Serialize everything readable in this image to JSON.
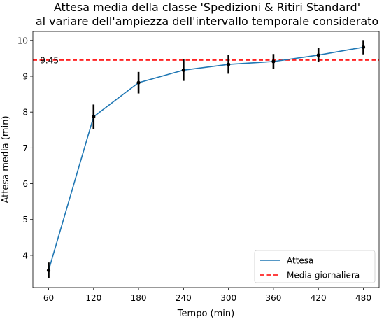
{
  "chart_data": {
    "type": "line",
    "title": [
      "Attesa media della classe 'Spedizioni & Ritiri Standard'",
      "al variare dell'ampiezza dell'intervallo temporale considerato"
    ],
    "xlabel": "Tempo (min)",
    "ylabel": "Attesa media (min)",
    "x": [
      60,
      120,
      180,
      240,
      300,
      360,
      420,
      480
    ],
    "x_ticks": [
      "60",
      "120",
      "180",
      "240",
      "300",
      "360",
      "420",
      "480"
    ],
    "y_ticks": [
      "4",
      "5",
      "6",
      "7",
      "8",
      "9",
      "10"
    ],
    "ylim": [
      3.1,
      10.25
    ],
    "series": [
      {
        "name": "Attesa",
        "color": "#1f77b4",
        "values": [
          3.58,
          7.87,
          8.82,
          9.17,
          9.33,
          9.41,
          9.59,
          9.81
        ],
        "error": [
          0.22,
          0.34,
          0.3,
          0.3,
          0.26,
          0.21,
          0.2,
          0.2
        ]
      }
    ],
    "reference_line": {
      "name": "Media giornaliera",
      "value": 9.45,
      "label": "9.45",
      "color": "#ff0000",
      "style": "dashed"
    },
    "legend_position": "lower-right",
    "grid": false
  }
}
